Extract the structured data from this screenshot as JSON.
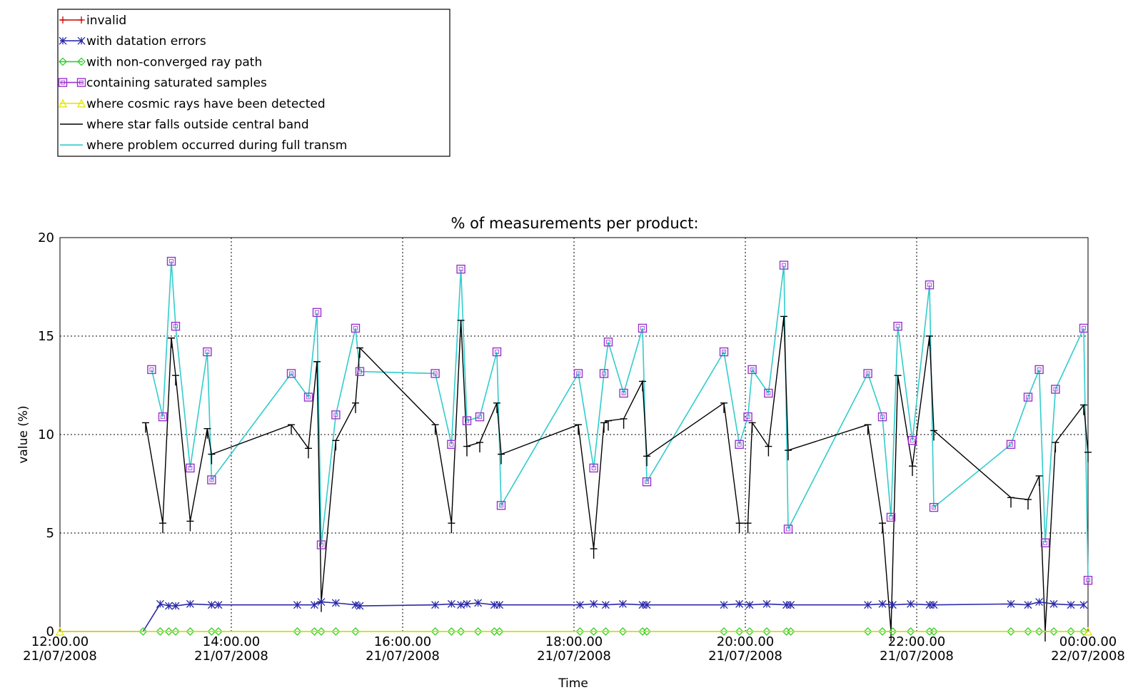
{
  "chart_data": {
    "type": "line",
    "title": "% of measurements per product:",
    "xlabel": "Time",
    "ylabel": "value (%)",
    "ylim": [
      0,
      20
    ],
    "yticks": [
      0,
      5,
      10,
      15,
      20
    ],
    "xlim_hours": [
      12,
      24
    ],
    "xticks": [
      {
        "h": 12,
        "time": "12:00.00",
        "date": "21/07/2008"
      },
      {
        "h": 14,
        "time": "14:00.00",
        "date": "21/07/2008"
      },
      {
        "h": 16,
        "time": "16:00.00",
        "date": "21/07/2008"
      },
      {
        "h": 18,
        "time": "18:00.00",
        "date": "21/07/2008"
      },
      {
        "h": 20,
        "time": "20:00.00",
        "date": "21/07/2008"
      },
      {
        "h": 22,
        "time": "22:00.00",
        "date": "21/07/2008"
      },
      {
        "h": 24,
        "time": "00:00.00",
        "date": "22/07/2008"
      }
    ],
    "grid": true,
    "grid_style": "dotted",
    "legend_position": "top-left, above plot",
    "series": [
      {
        "name": "invalid",
        "color": "#cc0000",
        "marker": "plus",
        "points": []
      },
      {
        "name": "with datation errors",
        "color": "#2a2aa8",
        "marker": "asterisk",
        "points": [
          [
            12.0,
            0
          ],
          [
            12.97,
            0
          ],
          [
            13.17,
            1.4
          ],
          [
            13.27,
            1.3
          ],
          [
            13.35,
            1.3
          ],
          [
            13.52,
            1.4
          ],
          [
            13.77,
            1.35
          ],
          [
            13.85,
            1.35
          ],
          [
            14.77,
            1.35
          ],
          [
            14.97,
            1.35
          ],
          [
            15.05,
            1.5
          ],
          [
            15.22,
            1.45
          ],
          [
            15.45,
            1.35
          ],
          [
            15.5,
            1.3
          ],
          [
            16.38,
            1.35
          ],
          [
            16.57,
            1.4
          ],
          [
            16.68,
            1.35
          ],
          [
            16.75,
            1.4
          ],
          [
            16.88,
            1.45
          ],
          [
            17.07,
            1.35
          ],
          [
            17.13,
            1.35
          ],
          [
            18.07,
            1.35
          ],
          [
            18.23,
            1.4
          ],
          [
            18.37,
            1.35
          ],
          [
            18.57,
            1.4
          ],
          [
            18.8,
            1.35
          ],
          [
            18.85,
            1.35
          ],
          [
            19.75,
            1.35
          ],
          [
            19.93,
            1.4
          ],
          [
            20.05,
            1.35
          ],
          [
            20.25,
            1.4
          ],
          [
            20.48,
            1.35
          ],
          [
            20.53,
            1.35
          ],
          [
            21.43,
            1.35
          ],
          [
            21.6,
            1.4
          ],
          [
            21.72,
            1.35
          ],
          [
            21.93,
            1.4
          ],
          [
            22.15,
            1.35
          ],
          [
            22.2,
            1.35
          ],
          [
            23.1,
            1.4
          ],
          [
            23.3,
            1.35
          ],
          [
            23.43,
            1.5
          ],
          [
            23.6,
            1.4
          ],
          [
            23.8,
            1.35
          ],
          [
            23.95,
            1.35
          ]
        ]
      },
      {
        "name": "with non-converged ray path",
        "color": "#33cc33",
        "marker": "diamond",
        "points": [
          [
            12.97,
            0
          ],
          [
            13.17,
            0
          ],
          [
            13.27,
            0
          ],
          [
            13.35,
            0
          ],
          [
            13.52,
            0
          ],
          [
            13.77,
            0
          ],
          [
            13.85,
            0
          ],
          [
            14.77,
            0
          ],
          [
            14.97,
            0
          ],
          [
            15.05,
            0
          ],
          [
            15.22,
            0
          ],
          [
            15.45,
            0
          ],
          [
            16.38,
            0
          ],
          [
            16.57,
            0
          ],
          [
            16.68,
            0
          ],
          [
            16.88,
            0
          ],
          [
            17.07,
            0
          ],
          [
            17.13,
            0
          ],
          [
            18.07,
            0
          ],
          [
            18.23,
            0
          ],
          [
            18.37,
            0
          ],
          [
            18.57,
            0
          ],
          [
            18.8,
            0
          ],
          [
            18.85,
            0
          ],
          [
            19.75,
            0
          ],
          [
            19.93,
            0
          ],
          [
            20.05,
            0
          ],
          [
            20.25,
            0
          ],
          [
            20.48,
            0
          ],
          [
            20.53,
            0
          ],
          [
            21.43,
            0
          ],
          [
            21.6,
            0
          ],
          [
            21.72,
            0
          ],
          [
            21.93,
            0
          ],
          [
            22.15,
            0
          ],
          [
            22.2,
            0
          ],
          [
            23.1,
            0
          ],
          [
            23.3,
            0
          ],
          [
            23.43,
            0
          ],
          [
            23.6,
            0
          ],
          [
            23.8,
            0
          ],
          [
            23.95,
            0
          ]
        ]
      },
      {
        "name": "containing saturated samples",
        "color": "#9933cc",
        "marker": "square",
        "points": [
          [
            13.07,
            13.3
          ],
          [
            13.2,
            10.9
          ],
          [
            13.3,
            18.8
          ],
          [
            13.35,
            15.5
          ],
          [
            13.52,
            8.3
          ],
          [
            13.72,
            14.2
          ],
          [
            13.77,
            7.7
          ],
          [
            14.7,
            13.1
          ],
          [
            14.9,
            11.9
          ],
          [
            15.0,
            16.2
          ],
          [
            15.05,
            4.4
          ],
          [
            15.22,
            11.0
          ],
          [
            15.45,
            15.4
          ],
          [
            15.5,
            13.2
          ],
          [
            16.38,
            13.1
          ],
          [
            16.57,
            9.5
          ],
          [
            16.68,
            18.4
          ],
          [
            16.75,
            10.7
          ],
          [
            16.9,
            10.9
          ],
          [
            17.1,
            14.2
          ],
          [
            17.15,
            6.4
          ],
          [
            18.05,
            13.1
          ],
          [
            18.23,
            8.3
          ],
          [
            18.35,
            13.1
          ],
          [
            18.4,
            14.7
          ],
          [
            18.58,
            12.1
          ],
          [
            18.8,
            15.4
          ],
          [
            18.85,
            7.6
          ],
          [
            19.75,
            14.2
          ],
          [
            19.93,
            9.5
          ],
          [
            20.03,
            10.9
          ],
          [
            20.08,
            13.3
          ],
          [
            20.27,
            12.1
          ],
          [
            20.45,
            18.6
          ],
          [
            20.5,
            5.2
          ],
          [
            21.43,
            13.1
          ],
          [
            21.6,
            10.9
          ],
          [
            21.7,
            5.8
          ],
          [
            21.78,
            15.5
          ],
          [
            21.95,
            9.7
          ],
          [
            22.15,
            17.6
          ],
          [
            22.2,
            6.3
          ],
          [
            23.1,
            9.5
          ],
          [
            23.3,
            11.9
          ],
          [
            23.43,
            13.3
          ],
          [
            23.5,
            4.5
          ],
          [
            23.62,
            12.3
          ],
          [
            23.95,
            15.4
          ],
          [
            24.0,
            2.6
          ]
        ]
      },
      {
        "name": "where cosmic rays have been detected",
        "color": "#e6e600",
        "marker": "triangle",
        "points": [
          [
            12.0,
            0
          ],
          [
            24.0,
            0
          ]
        ]
      },
      {
        "name": "where star falls outside central band",
        "color": "#000000",
        "marker": "none",
        "points": [
          [
            13.0,
            10.6
          ],
          [
            13.2,
            5.5
          ],
          [
            13.3,
            14.9
          ],
          [
            13.35,
            13.0
          ],
          [
            13.52,
            5.6
          ],
          [
            13.72,
            10.3
          ],
          [
            13.77,
            9.0
          ],
          [
            14.7,
            10.5
          ],
          [
            14.9,
            9.3
          ],
          [
            15.0,
            13.7
          ],
          [
            15.05,
            1.5
          ],
          [
            15.22,
            9.7
          ],
          [
            15.45,
            11.6
          ],
          [
            15.5,
            14.4
          ],
          [
            16.38,
            10.5
          ],
          [
            16.57,
            5.5
          ],
          [
            16.68,
            15.8
          ],
          [
            16.75,
            9.4
          ],
          [
            16.9,
            9.6
          ],
          [
            17.1,
            11.6
          ],
          [
            17.15,
            9.0
          ],
          [
            18.05,
            10.5
          ],
          [
            18.23,
            4.2
          ],
          [
            18.35,
            10.6
          ],
          [
            18.4,
            10.7
          ],
          [
            18.58,
            10.8
          ],
          [
            18.8,
            12.7
          ],
          [
            18.85,
            8.9
          ],
          [
            19.75,
            11.6
          ],
          [
            19.93,
            5.5
          ],
          [
            20.03,
            5.5
          ],
          [
            20.08,
            10.6
          ],
          [
            20.27,
            9.4
          ],
          [
            20.45,
            16.0
          ],
          [
            20.5,
            9.2
          ],
          [
            21.43,
            10.5
          ],
          [
            21.6,
            5.5
          ],
          [
            21.7,
            0
          ],
          [
            21.78,
            13.0
          ],
          [
            21.95,
            8.4
          ],
          [
            22.15,
            15.0
          ],
          [
            22.2,
            10.2
          ],
          [
            23.1,
            6.8
          ],
          [
            23.3,
            6.7
          ],
          [
            23.43,
            7.9
          ],
          [
            23.5,
            0
          ],
          [
            23.62,
            9.6
          ],
          [
            23.95,
            11.5
          ],
          [
            24.0,
            9.1
          ]
        ]
      },
      {
        "name": "where problem occurred during full transm",
        "color": "#33cccc",
        "marker": "none",
        "points": [
          [
            13.07,
            13.3
          ],
          [
            13.2,
            10.9
          ],
          [
            13.3,
            18.8
          ],
          [
            13.35,
            15.5
          ],
          [
            13.52,
            8.3
          ],
          [
            13.72,
            14.2
          ],
          [
            13.77,
            7.7
          ],
          [
            14.7,
            13.1
          ],
          [
            14.9,
            11.9
          ],
          [
            15.0,
            16.2
          ],
          [
            15.05,
            4.4
          ],
          [
            15.22,
            11.0
          ],
          [
            15.45,
            15.4
          ],
          [
            15.5,
            13.2
          ],
          [
            16.38,
            13.1
          ],
          [
            16.57,
            9.5
          ],
          [
            16.68,
            18.4
          ],
          [
            16.75,
            10.7
          ],
          [
            16.9,
            10.9
          ],
          [
            17.1,
            14.2
          ],
          [
            17.15,
            6.4
          ],
          [
            18.05,
            13.1
          ],
          [
            18.23,
            8.3
          ],
          [
            18.35,
            13.1
          ],
          [
            18.4,
            14.7
          ],
          [
            18.58,
            12.1
          ],
          [
            18.8,
            15.4
          ],
          [
            18.85,
            7.6
          ],
          [
            19.75,
            14.2
          ],
          [
            19.93,
            9.5
          ],
          [
            20.03,
            10.9
          ],
          [
            20.08,
            13.3
          ],
          [
            20.27,
            12.1
          ],
          [
            20.45,
            18.6
          ],
          [
            20.5,
            5.2
          ],
          [
            21.43,
            13.1
          ],
          [
            21.6,
            10.9
          ],
          [
            21.7,
            5.8
          ],
          [
            21.78,
            15.5
          ],
          [
            21.95,
            9.7
          ],
          [
            22.15,
            17.6
          ],
          [
            22.2,
            6.3
          ],
          [
            23.1,
            9.5
          ],
          [
            23.3,
            11.9
          ],
          [
            23.43,
            13.3
          ],
          [
            23.5,
            4.5
          ],
          [
            23.62,
            12.3
          ],
          [
            23.95,
            15.4
          ],
          [
            24.0,
            2.6
          ]
        ]
      }
    ]
  }
}
